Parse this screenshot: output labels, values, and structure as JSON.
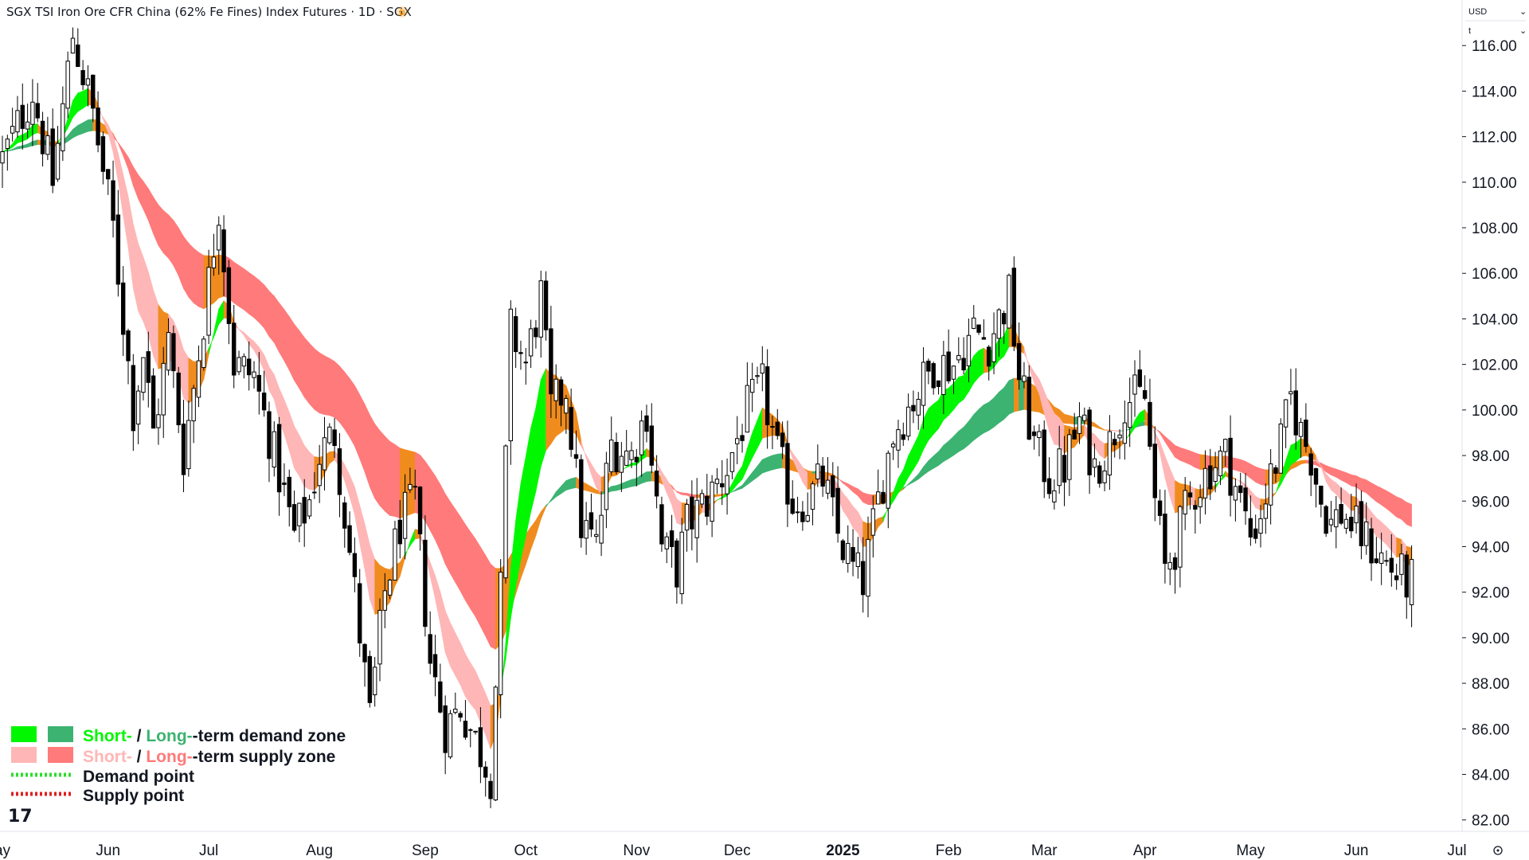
{
  "header": {
    "title": "SGX TSI Iron Ore CFR China (62% Fe Fines) Index Futures · 1D · SGX",
    "badge": "D",
    "currency": "USD",
    "unit": "t"
  },
  "colors": {
    "candle": "#000000",
    "short_demand": "#00f700",
    "long_demand": "#3cb371",
    "short_supply": "#ffb6b6",
    "long_supply": "#ff7a7a",
    "neutral": "#f08c1e",
    "demand_point": "#2edc2e",
    "supply_point": "#e02020"
  },
  "legend": {
    "row1": {
      "short": "Short-",
      "sep": " / ",
      "long": "Long-",
      "rest": "-term demand zone"
    },
    "row2": {
      "short": "Short-",
      "sep": " / ",
      "long": "Long-",
      "rest": "-term supply zone"
    },
    "row3": "Demand point",
    "row4": "Supply point",
    "logo": "17"
  },
  "chart_data": {
    "type": "candlestick",
    "ylim": [
      81.5,
      118
    ],
    "y_ticks": [
      "116.00",
      "114.00",
      "112.00",
      "110.00",
      "108.00",
      "106.00",
      "104.00",
      "102.00",
      "100.00",
      "98.00",
      "96.00",
      "94.00",
      "92.00",
      "90.00",
      "88.00",
      "86.00",
      "84.00",
      "82.00"
    ],
    "x_ticks": [
      "ay",
      "Jun",
      "Jul",
      "Aug",
      "Sep",
      "Oct",
      "Nov",
      "Dec",
      "2025",
      "Feb",
      "Mar",
      "Apr",
      "May",
      "Jun",
      "Jul"
    ],
    "x_tick_positions": [
      0,
      21,
      41,
      63,
      84,
      104,
      126,
      146,
      167,
      188,
      207,
      227,
      248,
      269,
      289
    ],
    "candle_count": 281,
    "price_anchors": [
      [
        0,
        111
      ],
      [
        6,
        114
      ],
      [
        10,
        110
      ],
      [
        14,
        116.5
      ],
      [
        18,
        113
      ],
      [
        22,
        108
      ],
      [
        26,
        100
      ],
      [
        28,
        102.5
      ],
      [
        30,
        99
      ],
      [
        33,
        103
      ],
      [
        36,
        98
      ],
      [
        40,
        104
      ],
      [
        43,
        109
      ],
      [
        46,
        102
      ],
      [
        50,
        101.5
      ],
      [
        54,
        98
      ],
      [
        58,
        94.5
      ],
      [
        61,
        96
      ],
      [
        63,
        98
      ],
      [
        66,
        99
      ],
      [
        70,
        92
      ],
      [
        73,
        86.5
      ],
      [
        76,
        92
      ],
      [
        79,
        95
      ],
      [
        82,
        96
      ],
      [
        85,
        89
      ],
      [
        88,
        86
      ],
      [
        91,
        87
      ],
      [
        95,
        85
      ],
      [
        97,
        84
      ],
      [
        99,
        92
      ],
      [
        101,
        103.5
      ],
      [
        104,
        102
      ],
      [
        107,
        105
      ],
      [
        109,
        100
      ],
      [
        112,
        101
      ],
      [
        115,
        95
      ],
      [
        118,
        94
      ],
      [
        121,
        98.5
      ],
      [
        125,
        98
      ],
      [
        128,
        100
      ],
      [
        131,
        94
      ],
      [
        134,
        93
      ],
      [
        136,
        95
      ],
      [
        140,
        96
      ],
      [
        144,
        97.5
      ],
      [
        148,
        100
      ],
      [
        151,
        101
      ],
      [
        154,
        98
      ],
      [
        157,
        96
      ],
      [
        160,
        96
      ],
      [
        163,
        97
      ],
      [
        166,
        94.5
      ],
      [
        169,
        93
      ],
      [
        171,
        92.5
      ],
      [
        174,
        96
      ],
      [
        177,
        99
      ],
      [
        181,
        100.5
      ],
      [
        185,
        102
      ],
      [
        189,
        102
      ],
      [
        193,
        103.5
      ],
      [
        196,
        103
      ],
      [
        200,
        105
      ],
      [
        202,
        101.5
      ],
      [
        205,
        98.5
      ],
      [
        208,
        97
      ],
      [
        211,
        97.5
      ],
      [
        214,
        99.5
      ],
      [
        217,
        97.5
      ],
      [
        220,
        98.5
      ],
      [
        223,
        100.5
      ],
      [
        227,
        100.5
      ],
      [
        229,
        96
      ],
      [
        231,
        93
      ],
      [
        233,
        94
      ],
      [
        235,
        95.5
      ],
      [
        237,
        96.5
      ],
      [
        240,
        97.5
      ],
      [
        243,
        98
      ],
      [
        246,
        96
      ],
      [
        248,
        94.5
      ],
      [
        250,
        95.5
      ],
      [
        252,
        97
      ],
      [
        254,
        98.5
      ],
      [
        256,
        100.5
      ],
      [
        258,
        99
      ],
      [
        260,
        98
      ],
      [
        262,
        96
      ],
      [
        264,
        95
      ],
      [
        266,
        95.5
      ],
      [
        268,
        95
      ],
      [
        270,
        94.5
      ],
      [
        272,
        94
      ],
      [
        274,
        93.5
      ],
      [
        276,
        93
      ],
      [
        279,
        92.5
      ],
      [
        280,
        92.5
      ]
    ],
    "demand_point": [],
    "supply_point": []
  }
}
